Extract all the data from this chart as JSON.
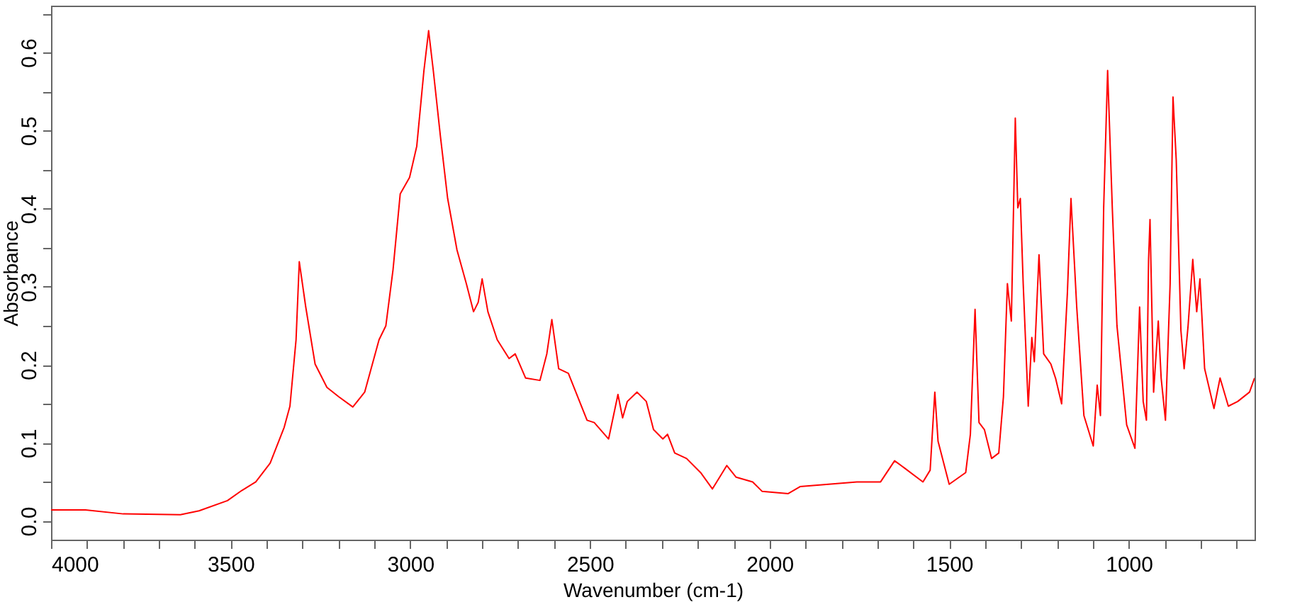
{
  "chart_data": {
    "type": "line",
    "xlabel": "Wavenumber (cm-1)",
    "ylabel": "Absorbance",
    "xlim": [
      4000,
      650
    ],
    "ylim": [
      -0.024,
      0.66
    ],
    "xticks": [
      4000,
      {
        "value": 3900,
        "label": null
      },
      {
        "value": 3800,
        "label": null
      },
      {
        "value": 3700,
        "label": null
      },
      {
        "value": 3600,
        "label": null
      },
      3500,
      {
        "value": 3400,
        "label": null
      },
      {
        "value": 3300,
        "label": null
      },
      {
        "value": 3200,
        "label": null
      },
      {
        "value": 3100,
        "label": null
      },
      3000,
      {
        "value": 2900,
        "label": null
      },
      {
        "value": 2800,
        "label": null
      },
      {
        "value": 2700,
        "label": null
      },
      {
        "value": 2600,
        "label": null
      },
      2500,
      {
        "value": 2400,
        "label": null
      },
      {
        "value": 2300,
        "label": null
      },
      {
        "value": 2200,
        "label": null
      },
      {
        "value": 2100,
        "label": null
      },
      2000,
      {
        "value": 1900,
        "label": null
      },
      {
        "value": 1800,
        "label": null
      },
      {
        "value": 1700,
        "label": null
      },
      {
        "value": 1600,
        "label": null
      },
      1500,
      {
        "value": 1400,
        "label": null
      },
      {
        "value": 1300,
        "label": null
      },
      {
        "value": 1200,
        "label": null
      },
      {
        "value": 1100,
        "label": null
      },
      1000,
      {
        "value": 900,
        "label": null
      },
      {
        "value": 800,
        "label": null
      },
      {
        "value": 700,
        "label": null
      }
    ],
    "yticks": [
      {
        "value": 0,
        "label": "0.0"
      },
      {
        "value": 0.05,
        "label": null
      },
      0.1,
      {
        "value": 0.15,
        "label": null
      },
      0.2,
      {
        "value": 0.25,
        "label": null
      },
      0.3,
      {
        "value": 0.35,
        "label": null
      },
      0.4,
      {
        "value": 0.45,
        "label": null
      },
      0.5,
      {
        "value": 0.55,
        "label": null
      },
      0.6,
      {
        "value": 0.65,
        "label": null
      }
    ],
    "grid": false,
    "marker": "none",
    "line_style": "solid",
    "x": [
      4000,
      3904,
      3799,
      3640,
      3588,
      3509,
      3469,
      3430,
      3390,
      3351,
      3335,
      3318,
      3309,
      3291,
      3265,
      3232,
      3199,
      3160,
      3127,
      3087,
      3068,
      3048,
      3028,
      3002,
      2982,
      2962,
      2949,
      2936,
      2916,
      2896,
      2870,
      2844,
      2824,
      2811,
      2800,
      2784,
      2758,
      2725,
      2708,
      2679,
      2639,
      2620,
      2606,
      2587,
      2560,
      2508,
      2488,
      2448,
      2422,
      2409,
      2396,
      2369,
      2343,
      2323,
      2297,
      2284,
      2264,
      2231,
      2192,
      2159,
      2119,
      2093,
      2047,
      2021,
      1948,
      1915,
      1836,
      1757,
      1691,
      1652,
      1625,
      1573,
      1553,
      1540,
      1531,
      1500,
      1454,
      1441,
      1428,
      1417,
      1402,
      1382,
      1362,
      1349,
      1338,
      1327,
      1316,
      1309,
      1302,
      1294,
      1280,
      1270,
      1263,
      1250,
      1237,
      1217,
      1204,
      1187,
      1171,
      1161,
      1145,
      1125,
      1099,
      1088,
      1079,
      1070,
      1059,
      1046,
      1033,
      1006,
      983,
      970,
      960,
      951,
      945,
      941,
      931,
      918,
      910,
      898,
      885,
      877,
      868,
      855,
      846,
      835,
      822,
      811,
      802,
      789,
      763,
      746,
      723,
      697,
      664,
      650
    ],
    "series": [
      {
        "color": "#ff0000",
        "values": [
          0.014,
          0.014,
          0.009,
          0.008,
          0.013,
          0.026,
          0.039,
          0.05,
          0.074,
          0.12,
          0.147,
          0.232,
          0.332,
          0.274,
          0.201,
          0.171,
          0.159,
          0.146,
          0.165,
          0.232,
          0.25,
          0.322,
          0.419,
          0.44,
          0.48,
          0.577,
          0.628,
          0.577,
          0.492,
          0.413,
          0.347,
          0.304,
          0.268,
          0.28,
          0.31,
          0.268,
          0.232,
          0.208,
          0.214,
          0.183,
          0.18,
          0.214,
          0.258,
          0.195,
          0.189,
          0.129,
          0.126,
          0.105,
          0.162,
          0.132,
          0.153,
          0.165,
          0.153,
          0.117,
          0.105,
          0.111,
          0.087,
          0.08,
          0.062,
          0.041,
          0.071,
          0.056,
          0.05,
          0.038,
          0.035,
          0.044,
          0.047,
          0.05,
          0.05,
          0.077,
          0.068,
          0.05,
          0.065,
          0.165,
          0.102,
          0.047,
          0.062,
          0.111,
          0.271,
          0.126,
          0.117,
          0.08,
          0.087,
          0.159,
          0.304,
          0.256,
          0.516,
          0.401,
          0.413,
          0.304,
          0.147,
          0.235,
          0.204,
          0.341,
          0.214,
          0.201,
          0.183,
          0.15,
          0.292,
          0.413,
          0.274,
          0.135,
          0.096,
          0.174,
          0.135,
          0.401,
          0.577,
          0.401,
          0.25,
          0.123,
          0.093,
          0.274,
          0.153,
          0.129,
          0.335,
          0.386,
          0.165,
          0.256,
          0.183,
          0.129,
          0.304,
          0.543,
          0.462,
          0.244,
          0.195,
          0.25,
          0.335,
          0.268,
          0.31,
          0.195,
          0.144,
          0.183,
          0.147,
          0.153,
          0.165,
          0.183
        ]
      }
    ]
  }
}
